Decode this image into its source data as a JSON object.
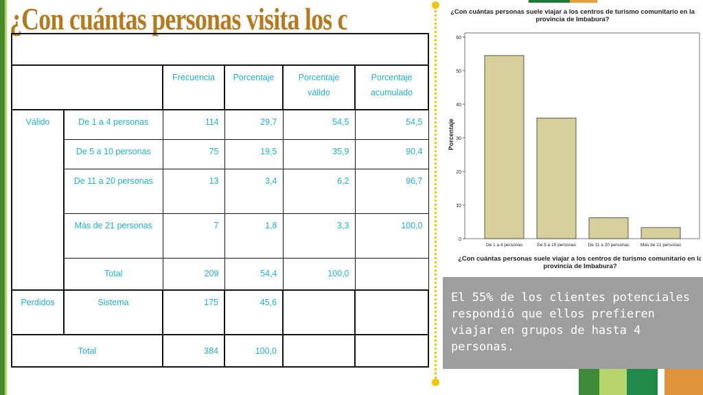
{
  "slide": {
    "title": "¿Con cuántas personas visita los ctc’s?"
  },
  "table": {
    "headers": [
      "Frecuencia",
      "Porcentaje",
      "Porcentaje válido",
      "Porcentaje acumulado"
    ],
    "valid_label": "Válido",
    "rows": [
      {
        "label": "De 1 a 4 personas",
        "freq": "114",
        "pct": "29,7",
        "valid": "54,5",
        "cum": "54,5"
      },
      {
        "label": "De 5 a 10 personas",
        "freq": "75",
        "pct": "19,5",
        "valid": "35,9",
        "cum": "90,4"
      },
      {
        "label": "De 11 a 20 personas",
        "freq": "13",
        "pct": "3,4",
        "valid": "6,2",
        "cum": "96,7"
      },
      {
        "label": "Más de 21 personas",
        "freq": "7",
        "pct": "1,8",
        "valid": "3,3",
        "cum": "100,0"
      }
    ],
    "subtotal": {
      "label": "Total",
      "freq": "209",
      "pct": "54,4",
      "valid": "100,0"
    },
    "missing": {
      "group": "Perdidos",
      "label": "Sistema",
      "freq": "175",
      "pct": "45,6"
    },
    "total": {
      "label": "Total",
      "freq": "384",
      "pct": "100,0"
    }
  },
  "chart_data": {
    "type": "bar",
    "title": "¿Con cuántas personas suele viajar a los centros de turismo comunitario en la provincia de Imbabura?",
    "xlabel": "¿Con cuántas personas suele viajar a los centros de turismo comunitario en la provincia de Imbabura?",
    "ylabel": "Porcentaje",
    "categories": [
      "De 1 a 4 personas",
      "De 5 a 10 personas",
      "De 11 a 20 personas",
      "Más de 21 personas"
    ],
    "values": [
      54.5,
      35.9,
      6.2,
      3.3
    ],
    "ylim": [
      0,
      60
    ],
    "yticks": [
      0,
      10,
      20,
      30,
      40,
      50,
      60
    ],
    "bar_color": "#d6cf9a",
    "grid": false
  },
  "note": {
    "text": "El 55% de los clientes potenciales respondió que ellos prefieren viajar en grupos de hasta 4 personas."
  },
  "colors": {
    "title": "#b57a1e",
    "table_text": "#1fb3c4",
    "divider": "#f2c500",
    "note_bg": "#9e9e9e"
  }
}
